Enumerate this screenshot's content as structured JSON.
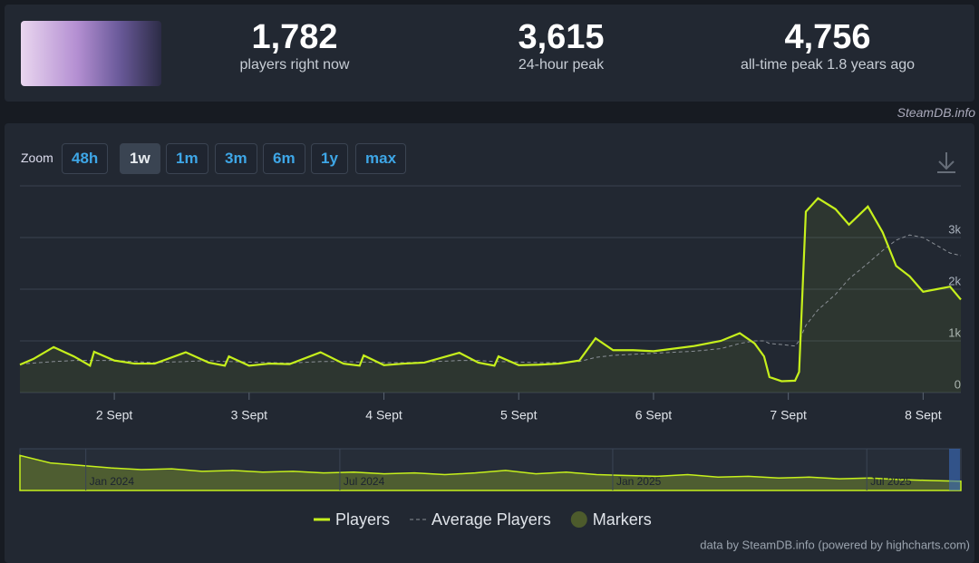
{
  "header": {
    "stats": [
      {
        "value": "1,782",
        "label": "players right now"
      },
      {
        "value": "3,615",
        "label": "24-hour peak"
      },
      {
        "value": "4,756",
        "label": "all-time peak 1.8 years ago"
      }
    ]
  },
  "brand": "SteamDB.info",
  "zoom": {
    "label": "Zoom",
    "buttons": [
      "48h",
      "1w",
      "1m",
      "3m",
      "6m",
      "1y",
      "max"
    ]
  },
  "chart_data": {
    "type": "line",
    "xlim": [
      1.3,
      8.28
    ],
    "ylim": [
      0,
      4000
    ],
    "xticks": [
      {
        "value": 2,
        "label": "2 Sept"
      },
      {
        "value": 3,
        "label": "3 Sept"
      },
      {
        "value": 4,
        "label": "4 Sept"
      },
      {
        "value": 5,
        "label": "5 Sept"
      },
      {
        "value": 6,
        "label": "6 Sept"
      },
      {
        "value": 7,
        "label": "7 Sept"
      },
      {
        "value": 8,
        "label": "8 Sept"
      }
    ],
    "yticks": [
      0,
      {
        "value": 1000,
        "label": "1k"
      },
      {
        "value": 2000,
        "label": "2k"
      },
      {
        "value": 3000,
        "label": "3k"
      },
      4000
    ],
    "grid": true,
    "x": [
      1.3,
      1.4,
      1.55,
      1.7,
      1.82,
      1.85,
      2.0,
      2.15,
      2.3,
      2.53,
      2.7,
      2.82,
      2.85,
      3.0,
      3.15,
      3.3,
      3.53,
      3.7,
      3.82,
      3.85,
      4.0,
      4.15,
      4.3,
      4.56,
      4.7,
      4.82,
      4.85,
      5.0,
      5.15,
      5.3,
      5.45,
      5.57,
      5.7,
      5.85,
      6.0,
      6.3,
      6.5,
      6.64,
      6.75,
      6.82,
      6.86,
      6.95,
      7.05,
      7.08,
      7.13,
      7.22,
      7.35,
      7.45,
      7.59,
      7.7,
      7.8,
      7.9,
      8.0,
      8.1,
      8.2,
      8.28
    ],
    "series": [
      {
        "name": "Players",
        "color": "#c6f01c",
        "values": [
          540,
          650,
          880,
          700,
          520,
          790,
          620,
          560,
          560,
          780,
          580,
          520,
          700,
          520,
          560,
          550,
          780,
          560,
          520,
          720,
          530,
          560,
          580,
          770,
          580,
          520,
          700,
          530,
          540,
          560,
          620,
          1050,
          820,
          820,
          800,
          900,
          1000,
          1150,
          950,
          700,
          300,
          220,
          230,
          400,
          3500,
          3760,
          3550,
          3250,
          3600,
          3100,
          2450,
          2250,
          1950,
          2000,
          2050,
          1800
        ]
      },
      {
        "name": "Average Players",
        "color": "#8a8f96",
        "dashed": true,
        "values": [
          550,
          570,
          600,
          620,
          620,
          620,
          620,
          600,
          580,
          600,
          620,
          600,
          600,
          590,
          580,
          570,
          600,
          600,
          590,
          590,
          580,
          580,
          590,
          620,
          620,
          600,
          600,
          590,
          580,
          580,
          600,
          680,
          720,
          740,
          760,
          800,
          850,
          950,
          1000,
          1000,
          950,
          930,
          900,
          1000,
          1300,
          1600,
          1900,
          2200,
          2500,
          2750,
          2950,
          3050,
          3000,
          2850,
          2700,
          2650
        ]
      }
    ],
    "markers_legend": {
      "name": "Markers",
      "color": "#4d5b2c"
    },
    "navigator": {
      "ylim": [
        0,
        5000
      ],
      "values": [
        4200,
        3300,
        3000,
        2700,
        2500,
        2600,
        2300,
        2400,
        2200,
        2300,
        2100,
        2200,
        2000,
        2100,
        1900,
        2100,
        2400,
        2000,
        2200,
        1900,
        1800,
        1700,
        1900,
        1600,
        1700,
        1500,
        1600,
        1400,
        1500,
        1300,
        1200,
        1100
      ],
      "labels": [
        {
          "value": 0.07,
          "label": "Jan 2024"
        },
        {
          "value": 0.34,
          "label": "Jul 2024"
        },
        {
          "value": 0.63,
          "label": "Jan 2025"
        },
        {
          "value": 0.9,
          "label": "Jul 2025"
        }
      ]
    }
  },
  "footer": "data by SteamDB.info (powered by highcharts.com)"
}
